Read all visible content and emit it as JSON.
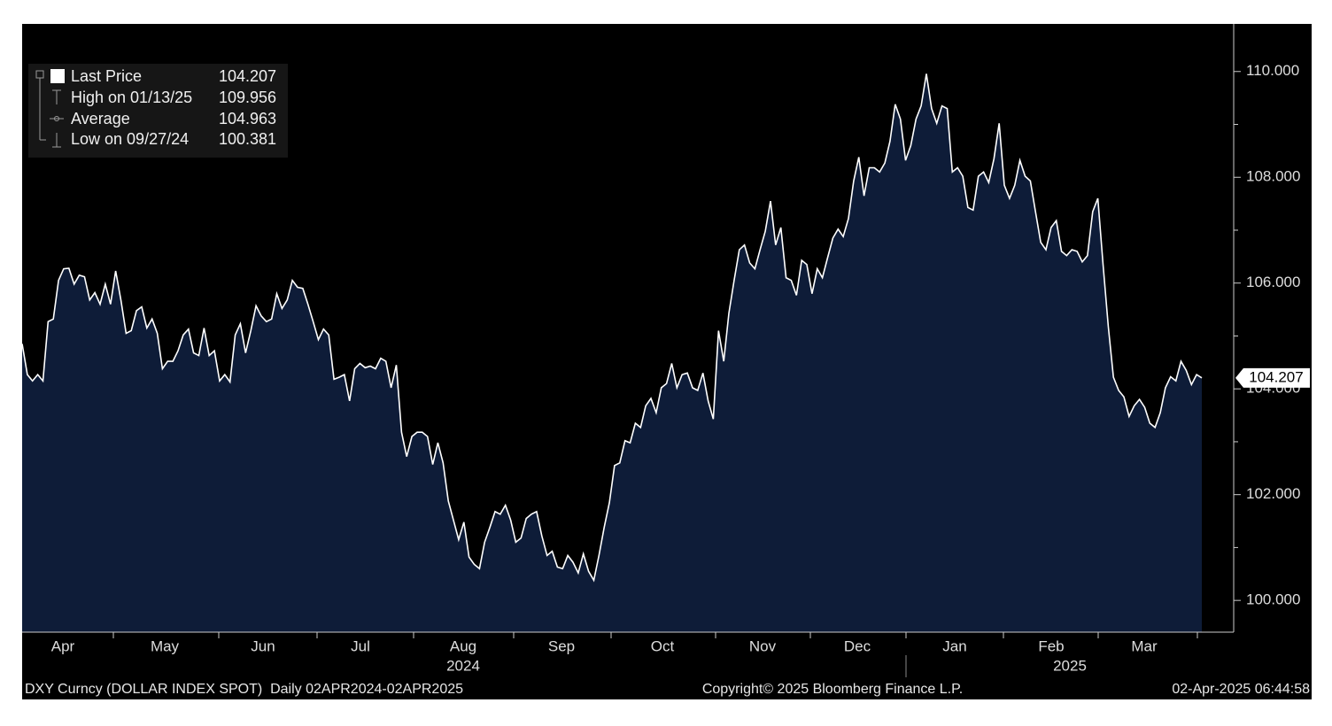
{
  "chart_data": {
    "type": "area",
    "series": [
      {
        "name": "Last Price",
        "color": "#ffffff",
        "fill": "#0e1c38",
        "values": [
          104.85,
          104.27,
          104.15,
          104.27,
          104.15,
          105.27,
          105.32,
          106.05,
          106.27,
          106.28,
          105.98,
          106.15,
          106.12,
          105.68,
          105.82,
          105.6,
          105.98,
          105.6,
          106.23,
          105.68,
          105.05,
          105.1,
          105.48,
          105.55,
          105.15,
          105.32,
          105.05,
          104.38,
          104.52,
          104.52,
          104.72,
          105.02,
          105.13,
          104.68,
          104.63,
          105.15,
          104.63,
          104.72,
          104.15,
          104.27,
          104.13,
          105.02,
          105.23,
          104.68,
          105.1,
          105.57,
          105.38,
          105.27,
          105.32,
          105.8,
          105.52,
          105.68,
          106.05,
          105.92,
          105.9,
          105.6,
          105.27,
          104.93,
          105.13,
          105.02,
          104.18,
          104.22,
          104.27,
          103.77,
          104.38,
          104.48,
          104.4,
          104.43,
          104.38,
          104.58,
          104.52,
          104.02,
          104.45,
          103.18,
          102.72,
          103.1,
          103.18,
          103.18,
          103.1,
          102.57,
          102.98,
          102.6,
          101.88,
          101.52,
          101.15,
          101.48,
          100.82,
          100.68,
          100.6,
          101.1,
          101.38,
          101.68,
          101.63,
          101.8,
          101.52,
          101.1,
          101.18,
          101.55,
          101.63,
          101.68,
          101.22,
          100.85,
          100.93,
          100.63,
          100.6,
          100.85,
          100.72,
          100.52,
          100.88,
          100.55,
          100.381,
          100.85,
          101.38,
          101.85,
          102.55,
          102.6,
          103.02,
          102.98,
          103.35,
          103.27,
          103.68,
          103.82,
          103.55,
          104.02,
          104.1,
          104.48,
          104.02,
          104.27,
          104.3,
          104.02,
          103.97,
          104.3,
          103.77,
          103.43,
          105.1,
          104.52,
          105.43,
          106.05,
          106.63,
          106.72,
          106.38,
          106.27,
          106.63,
          106.98,
          107.55,
          106.72,
          107.05,
          106.1,
          106.05,
          105.77,
          106.43,
          106.35,
          105.8,
          106.27,
          106.1,
          106.48,
          106.85,
          107.02,
          106.88,
          107.22,
          107.93,
          108.38,
          107.65,
          108.18,
          108.18,
          108.1,
          108.27,
          108.68,
          109.38,
          109.1,
          108.32,
          108.6,
          109.1,
          109.35,
          109.956,
          109.3,
          109.02,
          109.35,
          109.3,
          108.1,
          108.18,
          108.02,
          107.43,
          107.38,
          108.02,
          108.1,
          107.9,
          108.35,
          109.02,
          107.85,
          107.6,
          107.85,
          108.32,
          108.02,
          107.93,
          107.35,
          106.77,
          106.63,
          107.05,
          107.18,
          106.6,
          106.52,
          106.63,
          106.6,
          106.4,
          106.52,
          107.35,
          107.6,
          106.35,
          105.18,
          104.22,
          103.97,
          103.85,
          103.48,
          103.68,
          103.8,
          103.65,
          103.35,
          103.27,
          103.55,
          104.02,
          104.23,
          104.15,
          104.52,
          104.35,
          104.08,
          104.27,
          104.207
        ]
      }
    ],
    "month_labels": [
      "Apr",
      "May",
      "Jun",
      "Jul",
      "Aug",
      "Sep",
      "Oct",
      "Nov",
      "Dec",
      "Jan",
      "Feb",
      "Mar"
    ],
    "year_labels": [
      "2024",
      "2025"
    ],
    "ylim": [
      99.4,
      110.9
    ],
    "yticks": [
      {
        "value": 100,
        "label": "100.000"
      },
      {
        "value": 102,
        "label": "102.000"
      },
      {
        "value": 104,
        "label": "104.000"
      },
      {
        "value": 106,
        "label": "106.000"
      },
      {
        "value": 108,
        "label": "108.000"
      },
      {
        "value": 110,
        "label": "110.000"
      }
    ],
    "legend": [
      {
        "label": "Last Price",
        "value": 104.207
      },
      {
        "label": "High on 01/13/25",
        "value": 109.956
      },
      {
        "label": "Average",
        "value": 104.963
      },
      {
        "label": "Low on 09/27/24",
        "value": 100.381
      }
    ],
    "footer": {
      "left": "DXY Curncy (DOLLAR INDEX SPOT)  Daily 02APR2024-02APR2025",
      "center": "Copyright© 2025 Bloomberg Finance L.P.",
      "right": "02-Apr-2025 06:44:58"
    }
  }
}
